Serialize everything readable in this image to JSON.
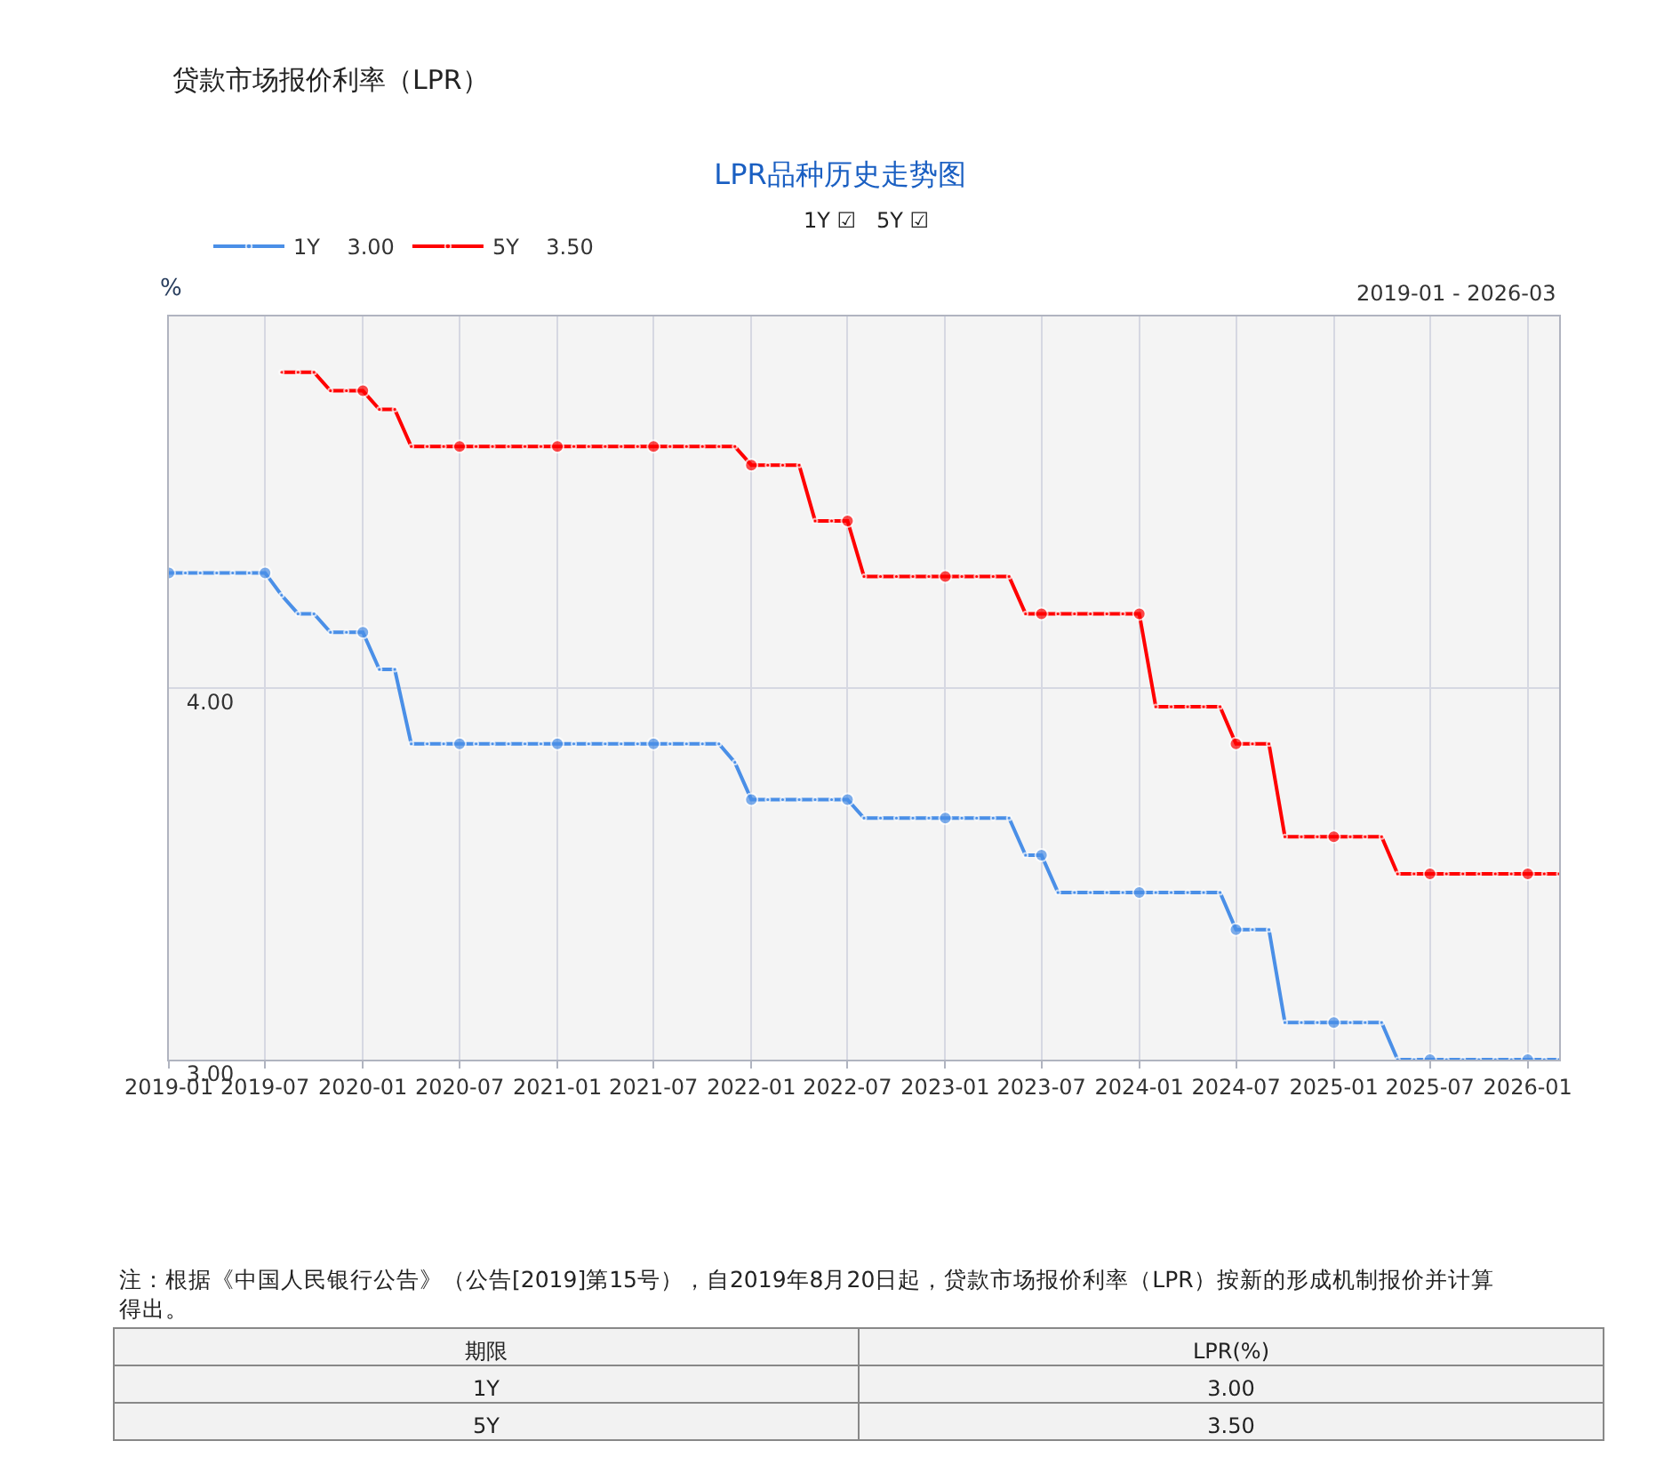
{
  "chart_data": [
    {
      "type": "line",
      "title": "LPR品种历史走势图",
      "ylabel": "%",
      "annotations": [
        "贷款市场报价利率（LPR）",
        "1Y ☑   5Y ☑",
        "2019-01 - 2026-03",
        "注：根据《中国人民银行公告》（公告[2019]第15号），自2019年8月20日起，贷款市场报价利率（LPR）按新的形成机制报价并计算得出。"
      ],
      "x": [
        "2019-01",
        "2019-02",
        "2019-03",
        "2019-04",
        "2019-05",
        "2019-06",
        "2019-07",
        "2019-08",
        "2019-09",
        "2019-10",
        "2019-11",
        "2019-12",
        "2020-01",
        "2020-02",
        "2020-03",
        "2020-04",
        "2020-05",
        "2020-06",
        "2020-07",
        "2020-08",
        "2020-09",
        "2020-10",
        "2020-11",
        "2020-12",
        "2021-01",
        "2021-02",
        "2021-03",
        "2021-04",
        "2021-05",
        "2021-06",
        "2021-07",
        "2021-08",
        "2021-09",
        "2021-10",
        "2021-11",
        "2021-12",
        "2022-01",
        "2022-02",
        "2022-03",
        "2022-04",
        "2022-05",
        "2022-06",
        "2022-07",
        "2022-08",
        "2022-09",
        "2022-10",
        "2022-11",
        "2022-12",
        "2023-01",
        "2023-02",
        "2023-03",
        "2023-04",
        "2023-05",
        "2023-06",
        "2023-07",
        "2023-08",
        "2023-09",
        "2023-10",
        "2023-11",
        "2023-12",
        "2024-01",
        "2024-02",
        "2024-03",
        "2024-04",
        "2024-05",
        "2024-06",
        "2024-07",
        "2024-08",
        "2024-09",
        "2024-10",
        "2024-11",
        "2024-12",
        "2025-01",
        "2025-02",
        "2025-03",
        "2025-04",
        "2025-05",
        "2025-06",
        "2025-07",
        "2025-08",
        "2025-09",
        "2025-10",
        "2025-11",
        "2025-12",
        "2026-01",
        "2026-02",
        "2026-03"
      ],
      "series": [
        {
          "name": "1Y    3.00",
          "color": "#4a8fe7",
          "values": [
            4.31,
            4.31,
            4.31,
            4.31,
            4.31,
            4.31,
            4.31,
            4.25,
            4.2,
            4.2,
            4.15,
            4.15,
            4.15,
            4.05,
            4.05,
            3.85,
            3.85,
            3.85,
            3.85,
            3.85,
            3.85,
            3.85,
            3.85,
            3.85,
            3.85,
            3.85,
            3.85,
            3.85,
            3.85,
            3.85,
            3.85,
            3.85,
            3.85,
            3.85,
            3.85,
            3.8,
            3.7,
            3.7,
            3.7,
            3.7,
            3.7,
            3.7,
            3.7,
            3.65,
            3.65,
            3.65,
            3.65,
            3.65,
            3.65,
            3.65,
            3.65,
            3.65,
            3.65,
            3.55,
            3.55,
            3.45,
            3.45,
            3.45,
            3.45,
            3.45,
            3.45,
            3.45,
            3.45,
            3.45,
            3.45,
            3.45,
            3.35,
            3.35,
            3.35,
            3.1,
            3.1,
            3.1,
            3.1,
            3.1,
            3.1,
            3.1,
            3.0,
            3.0,
            3.0,
            3.0,
            3.0,
            3.0,
            3.0,
            3.0,
            3.0,
            3.0,
            3.0
          ]
        },
        {
          "name": "5Y    3.50",
          "color": "#ff0000",
          "values": [
            null,
            null,
            null,
            null,
            null,
            null,
            null,
            4.85,
            4.85,
            4.85,
            4.8,
            4.8,
            4.8,
            4.75,
            4.75,
            4.65,
            4.65,
            4.65,
            4.65,
            4.65,
            4.65,
            4.65,
            4.65,
            4.65,
            4.65,
            4.65,
            4.65,
            4.65,
            4.65,
            4.65,
            4.65,
            4.65,
            4.65,
            4.65,
            4.65,
            4.65,
            4.6,
            4.6,
            4.6,
            4.6,
            4.45,
            4.45,
            4.45,
            4.3,
            4.3,
            4.3,
            4.3,
            4.3,
            4.3,
            4.3,
            4.3,
            4.3,
            4.3,
            4.2,
            4.2,
            4.2,
            4.2,
            4.2,
            4.2,
            4.2,
            4.2,
            3.95,
            3.95,
            3.95,
            3.95,
            3.95,
            3.85,
            3.85,
            3.85,
            3.6,
            3.6,
            3.6,
            3.6,
            3.6,
            3.6,
            3.6,
            3.5,
            3.5,
            3.5,
            3.5,
            3.5,
            3.5,
            3.5,
            3.5,
            3.5,
            3.5,
            3.5
          ]
        }
      ],
      "xlim": [
        "2019-01",
        "2026-03"
      ],
      "xticks": [
        {
          "value": "2019-01",
          "label": "2019-01"
        },
        {
          "value": "2019-07",
          "label": "2019-07"
        },
        {
          "value": "2020-01",
          "label": "2020-01"
        },
        {
          "value": "2020-07",
          "label": "2020-07"
        },
        {
          "value": "2021-01",
          "label": "2021-01"
        },
        {
          "value": "2021-07",
          "label": "2021-07"
        },
        {
          "value": "2022-01",
          "label": "2022-01"
        },
        {
          "value": "2022-07",
          "label": "2022-07"
        },
        {
          "value": "2023-01",
          "label": "2023-01"
        },
        {
          "value": "2023-07",
          "label": "2023-07"
        },
        {
          "value": "2024-01",
          "label": "2024-01"
        },
        {
          "value": "2024-07",
          "label": "2024-07"
        },
        {
          "value": "2025-01",
          "label": "2025-01"
        },
        {
          "value": "2025-07",
          "label": "2025-07"
        },
        {
          "value": "2026-01",
          "label": "2026-01"
        }
      ],
      "ylim": [
        3,
        5
      ],
      "yticks": [
        {
          "value": 3,
          "label": "3.00"
        },
        {
          "value": 4,
          "label": "4.00"
        }
      ],
      "grid": true,
      "legend": "top left",
      "marker": "circle",
      "line_style": "solid"
    },
    {
      "type": "other",
      "annotations": [
        "期限",
        "LPR(%)",
        "1Y",
        "3.00",
        "5Y",
        "3.50"
      ]
    }
  ]
}
